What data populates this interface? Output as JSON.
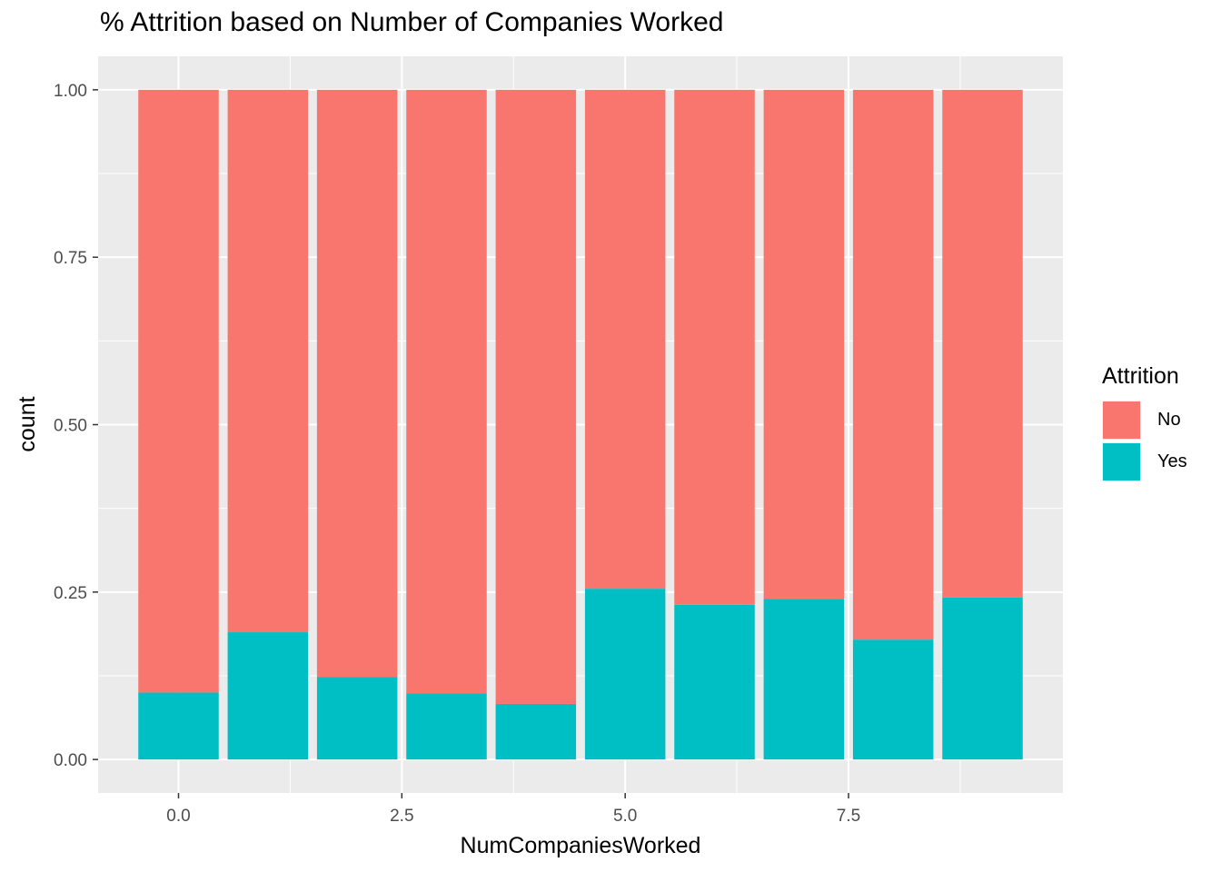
{
  "chart_data": {
    "type": "bar",
    "stacked": true,
    "title": "% Attrition based on Number of Companies Worked",
    "xlabel": "NumCompaniesWorked",
    "ylabel": "count",
    "x": [
      0,
      1,
      2,
      3,
      4,
      5,
      6,
      7,
      8,
      9
    ],
    "xlim": [
      -0.9,
      9.9
    ],
    "ylim": [
      -0.05,
      1.05
    ],
    "x_ticks": [
      "0.0",
      "2.5",
      "5.0",
      "7.5"
    ],
    "x_tick_values": [
      0,
      2.5,
      5,
      7.5
    ],
    "y_ticks": [
      "0.00",
      "0.25",
      "0.50",
      "0.75",
      "1.00"
    ],
    "y_tick_values": [
      0,
      0.25,
      0.5,
      0.75,
      1.0
    ],
    "bar_width": 0.9,
    "series": [
      {
        "name": "No",
        "color": "#F8766D",
        "values": [
          0.9,
          0.81,
          0.877,
          0.901,
          0.917,
          0.745,
          0.769,
          0.76,
          0.821,
          0.758
        ]
      },
      {
        "name": "Yes",
        "color": "#00BFC4",
        "values": [
          0.1,
          0.19,
          0.123,
          0.099,
          0.083,
          0.255,
          0.231,
          0.24,
          0.179,
          0.242
        ]
      }
    ],
    "legend": {
      "title": "Attrition",
      "position": "right"
    },
    "grid": true,
    "panel_background": "#EBEBEB"
  }
}
